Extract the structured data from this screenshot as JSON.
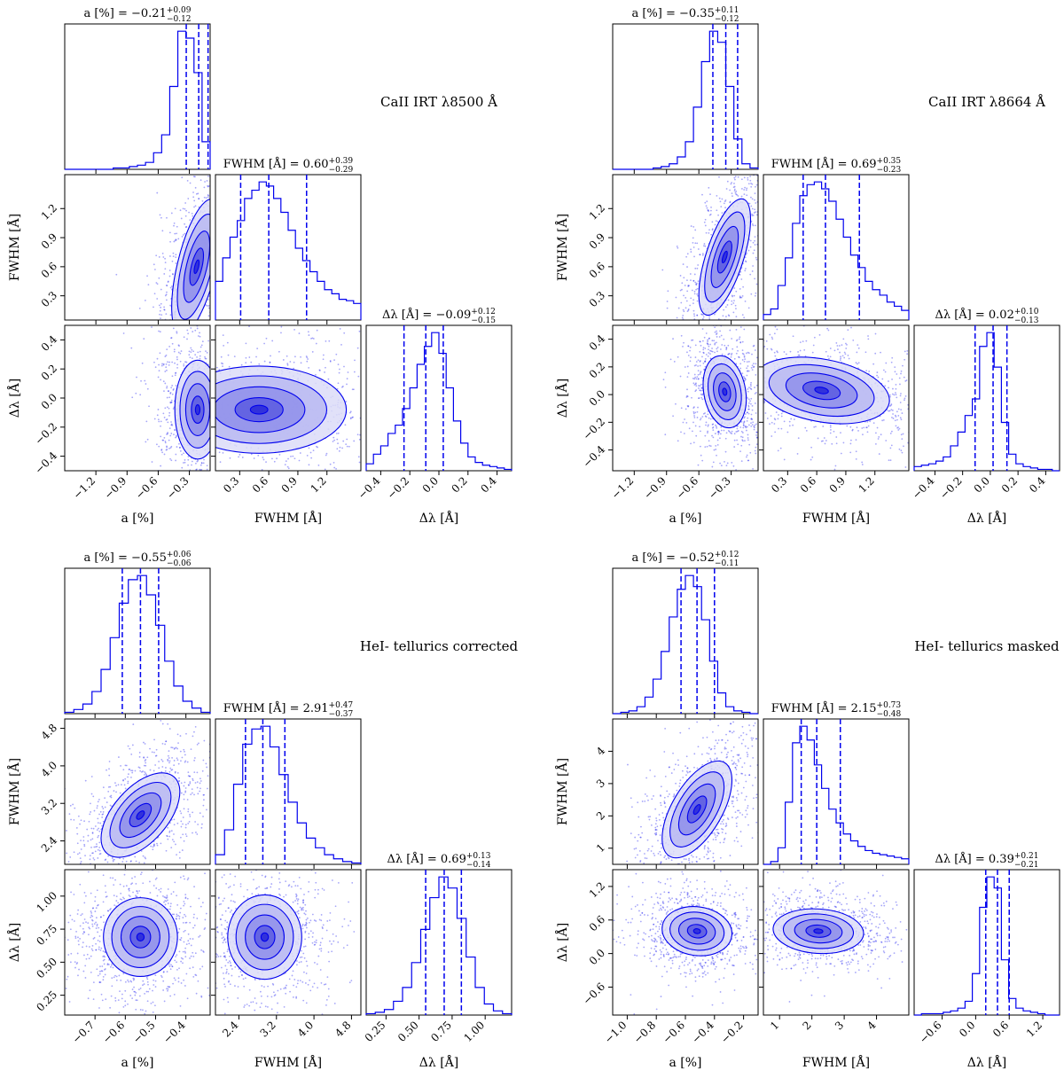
{
  "figure": {
    "description_label": "corner plots"
  },
  "chart_data": [
    {
      "type": "corner",
      "title": "CaII IRT λ8500 Å",
      "params": [
        {
          "key": "a",
          "label": "a [%]",
          "title": "a [%] = −0.21",
          "median": -0.21,
          "err_plus": "+0.09",
          "err_minus": "−0.12",
          "range": [
            -1.5,
            -0.1
          ],
          "ticks": [
            -1.2,
            -0.9,
            -0.6,
            -0.3
          ],
          "tick_labels": [
            "−1.2",
            "−0.9",
            "−0.6",
            "−0.3"
          ]
        },
        {
          "key": "fwhm",
          "label": "FWHM [Å]",
          "title": "FWHM [Å] = 0.60",
          "median": 0.6,
          "err_plus": "+0.39",
          "err_minus": "−0.29",
          "range": [
            0.05,
            1.55
          ],
          "ticks": [
            0.3,
            0.6,
            0.9,
            1.2
          ],
          "tick_labels": [
            "0.3",
            "0.6",
            "0.9",
            "1.2"
          ]
        },
        {
          "key": "dl",
          "label": "Δλ [Å]",
          "title": "Δλ [Å] = −0.09",
          "median": -0.09,
          "err_plus": "+0.12",
          "err_minus": "−0.15",
          "range": [
            -0.5,
            0.5
          ],
          "ticks": [
            -0.4,
            -0.2,
            0.0,
            0.2,
            0.4
          ],
          "tick_labels": [
            "−0.4",
            "−0.2",
            "0.0",
            "0.2",
            "0.4"
          ]
        }
      ],
      "hist": [
        {
          "quantiles": [
            -0.33,
            -0.21,
            -0.12
          ],
          "values": [
            0,
            0,
            0,
            0,
            0,
            0,
            0.01,
            0.01,
            0.02,
            0.03,
            0.05,
            0.12,
            0.25,
            0.6,
            1.0,
            0.95,
            0.7,
            0.2
          ]
        },
        {
          "quantiles": [
            0.31,
            0.6,
            0.99
          ],
          "values": [
            0.28,
            0.45,
            0.6,
            0.72,
            0.88,
            0.94,
            1.0,
            0.97,
            0.88,
            0.78,
            0.65,
            0.52,
            0.43,
            0.35,
            0.28,
            0.22,
            0.19,
            0.15,
            0.14,
            0.12
          ]
        },
        {
          "quantiles": [
            -0.24,
            -0.09,
            0.03
          ],
          "values": [
            0.05,
            0.12,
            0.18,
            0.27,
            0.33,
            0.45,
            0.6,
            0.77,
            0.9,
            1.0,
            0.85,
            0.6,
            0.36,
            0.2,
            0.1,
            0.06,
            0.04,
            0.03,
            0.02,
            0.01
          ]
        }
      ],
      "pairs": [
        {
          "row": 1,
          "col": 0,
          "cx": -0.23,
          "cy": 0.6,
          "sx": 0.12,
          "sy": 0.35,
          "rho": 0.6
        },
        {
          "row": 2,
          "col": 0,
          "cx": -0.22,
          "cy": -0.08,
          "sx": 0.11,
          "sy": 0.17,
          "rho": 0.0
        },
        {
          "row": 2,
          "col": 1,
          "cx": 0.5,
          "cy": -0.08,
          "sx": 0.45,
          "sy": 0.15,
          "rho": 0.0
        }
      ]
    },
    {
      "type": "corner",
      "title": "CaII IRT λ8664 Å",
      "params": [
        {
          "key": "a",
          "label": "a [%]",
          "title": "a [%] = −0.35",
          "median": -0.35,
          "err_plus": "+0.11",
          "err_minus": "−0.12",
          "range": [
            -1.4,
            -0.05
          ],
          "ticks": [
            -1.2,
            -0.9,
            -0.6,
            -0.3
          ],
          "tick_labels": [
            "−1.2",
            "−0.9",
            "−0.6",
            "−0.3"
          ]
        },
        {
          "key": "fwhm",
          "label": "FWHM [Å]",
          "title": "FWHM [Å] = 0.69",
          "median": 0.69,
          "err_plus": "+0.35",
          "err_minus": "−0.23",
          "range": [
            0.05,
            1.55
          ],
          "ticks": [
            0.3,
            0.6,
            0.9,
            1.2
          ],
          "tick_labels": [
            "0.3",
            "0.6",
            "0.9",
            "1.2"
          ]
        },
        {
          "key": "dl",
          "label": "Δλ [Å]",
          "title": "Δλ [Å] = 0.02",
          "median": 0.02,
          "err_plus": "+0.10",
          "err_minus": "−0.13",
          "range": [
            -0.55,
            0.5
          ],
          "ticks": [
            -0.4,
            -0.2,
            0.0,
            0.2,
            0.4
          ],
          "tick_labels": [
            "−0.4",
            "−0.2",
            "0.0",
            "0.2",
            "0.4"
          ]
        }
      ],
      "hist": [
        {
          "quantiles": [
            -0.47,
            -0.35,
            -0.24
          ],
          "values": [
            0,
            0,
            0,
            0,
            0,
            0.01,
            0.02,
            0.04,
            0.09,
            0.2,
            0.45,
            0.78,
            1.0,
            0.92,
            0.6,
            0.22,
            0.04,
            0.01
          ]
        },
        {
          "quantiles": [
            0.46,
            0.69,
            1.04
          ],
          "values": [
            0.04,
            0.08,
            0.25,
            0.45,
            0.7,
            0.9,
            0.98,
            1.0,
            0.95,
            0.86,
            0.73,
            0.6,
            0.47,
            0.38,
            0.28,
            0.22,
            0.18,
            0.13,
            0.1,
            0.07
          ]
        },
        {
          "quantiles": [
            -0.11,
            0.02,
            0.12
          ],
          "values": [
            0.03,
            0.04,
            0.05,
            0.07,
            0.1,
            0.18,
            0.28,
            0.4,
            0.52,
            0.9,
            1.0,
            0.75,
            0.35,
            0.12,
            0.05,
            0.03,
            0.02,
            0.01,
            0.01,
            0.0
          ]
        }
      ],
      "pairs": [
        {
          "row": 1,
          "col": 0,
          "cx": -0.36,
          "cy": 0.7,
          "sx": 0.12,
          "sy": 0.3,
          "rho": 0.65
        },
        {
          "row": 2,
          "col": 0,
          "cx": -0.36,
          "cy": 0.02,
          "sx": 0.1,
          "sy": 0.13,
          "rho": -0.2
        },
        {
          "row": 2,
          "col": 1,
          "cx": 0.65,
          "cy": 0.03,
          "sx": 0.35,
          "sy": 0.12,
          "rho": -0.3
        }
      ]
    },
    {
      "type": "corner",
      "title": "HeI- tellurics corrected",
      "params": [
        {
          "key": "a",
          "label": "a [%]",
          "title": "a [%] = −0.55",
          "median": -0.55,
          "err_plus": "+0.06",
          "err_minus": "−0.06",
          "range": [
            -0.8,
            -0.32
          ],
          "ticks": [
            -0.7,
            -0.6,
            -0.5,
            -0.4
          ],
          "tick_labels": [
            "−0.7",
            "−0.6",
            "−0.5",
            "−0.4"
          ]
        },
        {
          "key": "fwhm",
          "label": "FWHM [Å]",
          "title": "FWHM [Å] = 2.91",
          "median": 2.91,
          "err_plus": "+0.47",
          "err_minus": "−0.37",
          "range": [
            1.9,
            5.0
          ],
          "ticks": [
            2.4,
            3.2,
            4.0,
            4.8
          ],
          "tick_labels": [
            "2.4",
            "3.2",
            "4.0",
            "4.8"
          ]
        },
        {
          "key": "dl",
          "label": "Δλ [Å]",
          "title": "Δλ [Å] = 0.69",
          "median": 0.69,
          "err_plus": "+0.13",
          "err_minus": "−0.14",
          "range": [
            0.1,
            1.2
          ],
          "ticks": [
            0.25,
            0.5,
            0.75,
            1.0
          ],
          "tick_labels": [
            "0.25",
            "0.50",
            "0.75",
            "1.00"
          ]
        }
      ],
      "hist": [
        {
          "quantiles": [
            -0.61,
            -0.55,
            -0.49
          ],
          "values": [
            0.01,
            0.03,
            0.07,
            0.16,
            0.32,
            0.55,
            0.8,
            0.97,
            1.0,
            0.86,
            0.64,
            0.38,
            0.2,
            0.09,
            0.04,
            0.01
          ]
        },
        {
          "quantiles": [
            2.54,
            2.91,
            3.38
          ],
          "values": [
            0.07,
            0.25,
            0.58,
            0.87,
            0.98,
            1.0,
            0.85,
            0.65,
            0.45,
            0.3,
            0.19,
            0.12,
            0.07,
            0.04,
            0.02,
            0.01
          ]
        },
        {
          "quantiles": [
            0.55,
            0.69,
            0.82
          ],
          "values": [
            0.01,
            0.02,
            0.04,
            0.1,
            0.2,
            0.38,
            0.62,
            0.85,
            1.0,
            0.92,
            0.7,
            0.42,
            0.2,
            0.08,
            0.03,
            0.01
          ]
        }
      ],
      "pairs": [
        {
          "row": 1,
          "col": 0,
          "cx": -0.55,
          "cy": 2.95,
          "sx": 0.065,
          "sy": 0.45,
          "rho": 0.55
        },
        {
          "row": 2,
          "col": 0,
          "cx": -0.55,
          "cy": 0.69,
          "sx": 0.065,
          "sy": 0.14,
          "rho": 0.0
        },
        {
          "row": 2,
          "col": 1,
          "cx": 2.95,
          "cy": 0.69,
          "sx": 0.45,
          "sy": 0.14,
          "rho": 0.0
        }
      ]
    },
    {
      "type": "corner",
      "title": "HeI- tellurics masked",
      "params": [
        {
          "key": "a",
          "label": "a [%]",
          "title": "a [%] = −0.52",
          "median": -0.52,
          "err_plus": "+0.12",
          "err_minus": "−0.11",
          "range": [
            -1.1,
            -0.1
          ],
          "ticks": [
            -1.0,
            -0.8,
            -0.6,
            -0.4,
            -0.2
          ],
          "tick_labels": [
            "−1.0",
            "−0.8",
            "−0.6",
            "−0.4",
            "−0.2"
          ]
        },
        {
          "key": "fwhm",
          "label": "FWHM [Å]",
          "title": "FWHM [Å] = 2.15",
          "median": 2.15,
          "err_plus": "+0.73",
          "err_minus": "−0.48",
          "range": [
            0.5,
            5.0
          ],
          "ticks": [
            1,
            2,
            3,
            4
          ],
          "tick_labels": [
            "1",
            "2",
            "3",
            "4"
          ]
        },
        {
          "key": "dl",
          "label": "Δλ [Å]",
          "title": "Δλ [Å] = 0.39",
          "median": 0.39,
          "err_plus": "+0.21",
          "err_minus": "−0.21",
          "range": [
            -1.1,
            1.5
          ],
          "ticks": [
            -0.6,
            0.0,
            0.6,
            1.2
          ],
          "tick_labels": [
            "−0.6",
            "0.0",
            "0.6",
            "1.2"
          ]
        }
      ],
      "hist": [
        {
          "quantiles": [
            -0.63,
            -0.52,
            -0.4
          ],
          "values": [
            0,
            0.01,
            0.02,
            0.05,
            0.12,
            0.25,
            0.45,
            0.7,
            0.9,
            1.0,
            0.92,
            0.68,
            0.38,
            0.15,
            0.05,
            0.02,
            0.01,
            0
          ]
        },
        {
          "quantiles": [
            1.67,
            2.15,
            2.88
          ],
          "values": [
            0.0,
            0.02,
            0.12,
            0.45,
            0.88,
            1.0,
            0.9,
            0.72,
            0.55,
            0.4,
            0.3,
            0.22,
            0.17,
            0.13,
            0.1,
            0.08,
            0.07,
            0.06,
            0.05,
            0.04
          ]
        },
        {
          "quantiles": [
            0.18,
            0.39,
            0.6
          ],
          "values": [
            0.0,
            0.01,
            0.01,
            0.01,
            0.02,
            0.03,
            0.05,
            0.1,
            0.3,
            0.78,
            1.0,
            0.92,
            0.4,
            0.12,
            0.05,
            0.03,
            0.02,
            0.01,
            0.0,
            0.0
          ]
        }
      ],
      "pairs": [
        {
          "row": 1,
          "col": 0,
          "cx": -0.52,
          "cy": 2.2,
          "sx": 0.12,
          "sy": 0.75,
          "rho": 0.6
        },
        {
          "row": 2,
          "col": 0,
          "cx": -0.52,
          "cy": 0.4,
          "sx": 0.12,
          "sy": 0.22,
          "rho": -0.1
        },
        {
          "row": 2,
          "col": 1,
          "cx": 2.2,
          "cy": 0.4,
          "sx": 0.7,
          "sy": 0.2,
          "rho": -0.1
        }
      ]
    }
  ]
}
